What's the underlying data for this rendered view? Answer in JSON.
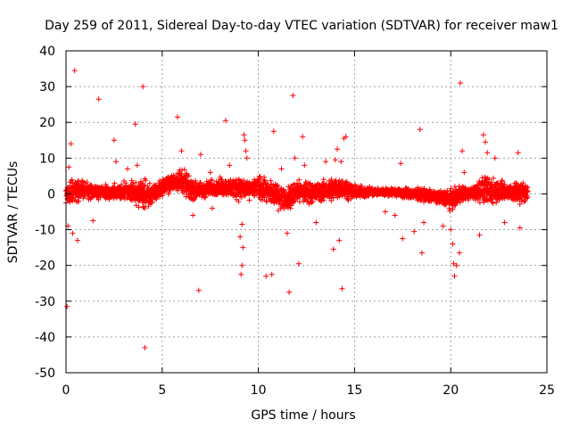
{
  "chart_data": {
    "type": "scatter",
    "title": "Day 259 of 2011, Sidereal Day-to-day VTEC variation (SDTVAR) for receiver maw1",
    "xlabel": "GPS time / hours",
    "ylabel": "SDTVAR / TECUs",
    "xlim": [
      0,
      25
    ],
    "ylim": [
      -50,
      40
    ],
    "xticks": [
      0,
      5,
      10,
      15,
      20,
      25
    ],
    "yticks": [
      40,
      30,
      20,
      10,
      0,
      -10,
      -20,
      -30,
      -40,
      -50
    ],
    "xtick_labels": [
      "0",
      "5",
      "10",
      "15",
      "20",
      "25"
    ],
    "ytick_labels": [
      "40",
      "30",
      "20",
      "10",
      "0",
      "-10",
      "-20",
      "-30",
      "-40",
      "-50"
    ],
    "grid": true,
    "marker": "+",
    "color": "#ff0000",
    "series": [
      {
        "name": "SDTVAR",
        "envelope": {
          "x": [
            0.0,
            0.5,
            1.0,
            2.0,
            3.0,
            4.0,
            4.5,
            5.0,
            5.5,
            6.0,
            6.5,
            7.0,
            8.0,
            9.0,
            9.5,
            10.0,
            10.5,
            11.0,
            11.5,
            12.0,
            13.0,
            14.0,
            14.5,
            15.0,
            16.0,
            17.0,
            18.0,
            19.0,
            20.0,
            20.5,
            21.0,
            21.5,
            22.0,
            22.5,
            23.0,
            23.5,
            24.0
          ],
          "upper": [
            4,
            5,
            4,
            3,
            4,
            5,
            3,
            5,
            6,
            9,
            5,
            4,
            5,
            6,
            4,
            6,
            5,
            4,
            3,
            5,
            4,
            6,
            5,
            3,
            2,
            2,
            2,
            2,
            2,
            3,
            2,
            5,
            6,
            5,
            4,
            5,
            4
          ],
          "lower": [
            -5,
            -3,
            -2,
            -2,
            -3,
            -5,
            -4,
            -1,
            0,
            -1,
            -3,
            -2,
            -1,
            -3,
            -2,
            -2,
            -4,
            -5,
            -6,
            -4,
            -3,
            -3,
            -2,
            -2,
            -1,
            -1,
            -2,
            -3,
            -5,
            -3,
            -2,
            -3,
            -4,
            -3,
            -3,
            -4,
            -3
          ]
        },
        "outliers": [
          {
            "x": 0.05,
            "y": -31.5
          },
          {
            "x": 0.1,
            "y": -9
          },
          {
            "x": 0.15,
            "y": 7.5
          },
          {
            "x": 0.25,
            "y": 14
          },
          {
            "x": 0.35,
            "y": -11
          },
          {
            "x": 0.45,
            "y": 34.5
          },
          {
            "x": 0.6,
            "y": -13
          },
          {
            "x": 1.4,
            "y": -7.5
          },
          {
            "x": 1.7,
            "y": 26.5
          },
          {
            "x": 2.5,
            "y": 15
          },
          {
            "x": 2.6,
            "y": 9
          },
          {
            "x": 3.2,
            "y": 7
          },
          {
            "x": 3.6,
            "y": 19.5
          },
          {
            "x": 3.7,
            "y": 8
          },
          {
            "x": 4.0,
            "y": 30
          },
          {
            "x": 4.1,
            "y": -43
          },
          {
            "x": 5.8,
            "y": 21.5
          },
          {
            "x": 6.0,
            "y": 12
          },
          {
            "x": 6.6,
            "y": -6
          },
          {
            "x": 6.9,
            "y": -27
          },
          {
            "x": 7.0,
            "y": 11
          },
          {
            "x": 7.5,
            "y": 6
          },
          {
            "x": 7.6,
            "y": -4
          },
          {
            "x": 8.3,
            "y": 20.5
          },
          {
            "x": 8.5,
            "y": 8
          },
          {
            "x": 9.1,
            "y": -22.5
          },
          {
            "x": 9.15,
            "y": -20
          },
          {
            "x": 9.2,
            "y": -15
          },
          {
            "x": 9.25,
            "y": 16.5
          },
          {
            "x": 9.3,
            "y": 15
          },
          {
            "x": 9.35,
            "y": 12
          },
          {
            "x": 9.4,
            "y": 10
          },
          {
            "x": 9.05,
            "y": -12
          },
          {
            "x": 9.15,
            "y": -8.5
          },
          {
            "x": 10.4,
            "y": -23
          },
          {
            "x": 10.7,
            "y": -22.5
          },
          {
            "x": 10.8,
            "y": 17.5
          },
          {
            "x": 11.2,
            "y": 7
          },
          {
            "x": 11.5,
            "y": -11
          },
          {
            "x": 11.6,
            "y": -27.5
          },
          {
            "x": 11.8,
            "y": 27.5
          },
          {
            "x": 11.9,
            "y": 10
          },
          {
            "x": 12.1,
            "y": -19.5
          },
          {
            "x": 12.3,
            "y": 16
          },
          {
            "x": 12.4,
            "y": 8
          },
          {
            "x": 13.0,
            "y": -8
          },
          {
            "x": 13.5,
            "y": 9
          },
          {
            "x": 13.9,
            "y": -15.5
          },
          {
            "x": 14.0,
            "y": 9.5
          },
          {
            "x": 14.1,
            "y": 12.5
          },
          {
            "x": 14.2,
            "y": -13
          },
          {
            "x": 14.3,
            "y": 9
          },
          {
            "x": 14.35,
            "y": -26.5
          },
          {
            "x": 14.45,
            "y": 15.5
          },
          {
            "x": 14.55,
            "y": 16
          },
          {
            "x": 16.6,
            "y": -5
          },
          {
            "x": 17.1,
            "y": -6
          },
          {
            "x": 17.4,
            "y": 8.5
          },
          {
            "x": 17.5,
            "y": -12.5
          },
          {
            "x": 18.1,
            "y": -10.5
          },
          {
            "x": 18.4,
            "y": 18
          },
          {
            "x": 18.5,
            "y": -16.5
          },
          {
            "x": 18.6,
            "y": -8
          },
          {
            "x": 19.6,
            "y": -9
          },
          {
            "x": 20.0,
            "y": -10
          },
          {
            "x": 20.1,
            "y": -14
          },
          {
            "x": 20.15,
            "y": -19.5
          },
          {
            "x": 20.2,
            "y": -23
          },
          {
            "x": 20.3,
            "y": -20
          },
          {
            "x": 20.45,
            "y": -16.5
          },
          {
            "x": 20.5,
            "y": 31
          },
          {
            "x": 20.6,
            "y": 12
          },
          {
            "x": 20.7,
            "y": 6
          },
          {
            "x": 21.5,
            "y": -11.5
          },
          {
            "x": 21.7,
            "y": 16.5
          },
          {
            "x": 21.8,
            "y": 14.5
          },
          {
            "x": 21.9,
            "y": 11.5
          },
          {
            "x": 22.3,
            "y": 10
          },
          {
            "x": 22.8,
            "y": -8
          },
          {
            "x": 23.5,
            "y": 11.5
          },
          {
            "x": 23.6,
            "y": -9.5
          }
        ]
      }
    ]
  }
}
